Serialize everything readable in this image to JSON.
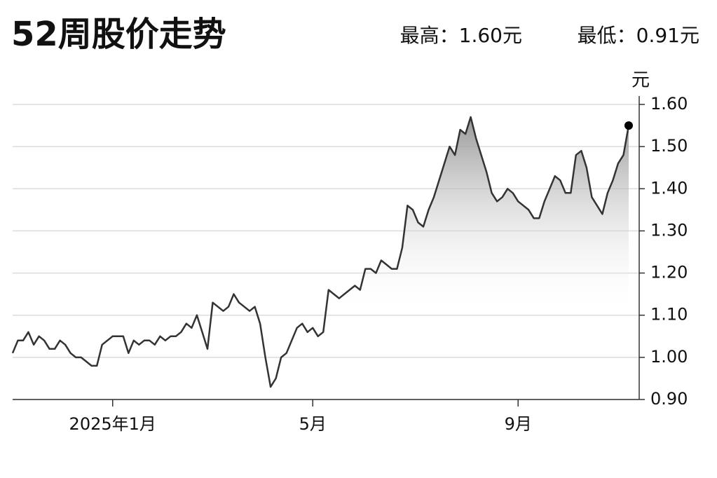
{
  "chart_data": {
    "type": "line",
    "title": "52周股价走势",
    "annotations": [
      "最高：1.60元",
      "最低：0.91元"
    ],
    "y_label": "元",
    "color": "#333333",
    "values": [
      1.01,
      1.04,
      1.04,
      1.06,
      1.03,
      1.05,
      1.04,
      1.02,
      1.02,
      1.04,
      1.03,
      1.01,
      1.0,
      1.0,
      0.99,
      0.98,
      0.98,
      1.03,
      1.04,
      1.05,
      1.05,
      1.05,
      1.01,
      1.04,
      1.03,
      1.04,
      1.04,
      1.03,
      1.05,
      1.04,
      1.05,
      1.05,
      1.06,
      1.08,
      1.07,
      1.1,
      1.06,
      1.02,
      1.13,
      1.12,
      1.11,
      1.12,
      1.15,
      1.13,
      1.12,
      1.11,
      1.12,
      1.08,
      1.0,
      0.93,
      0.95,
      1.0,
      1.01,
      1.04,
      1.07,
      1.08,
      1.06,
      1.07,
      1.05,
      1.06,
      1.16,
      1.15,
      1.14,
      1.15,
      1.16,
      1.17,
      1.16,
      1.21,
      1.21,
      1.2,
      1.23,
      1.22,
      1.21,
      1.21,
      1.26,
      1.36,
      1.35,
      1.32,
      1.31,
      1.35,
      1.38,
      1.42,
      1.46,
      1.5,
      1.48,
      1.54,
      1.53,
      1.57,
      1.52,
      1.48,
      1.44,
      1.39,
      1.37,
      1.38,
      1.4,
      1.39,
      1.37,
      1.36,
      1.35,
      1.33,
      1.33,
      1.37,
      1.4,
      1.43,
      1.42,
      1.39,
      1.39,
      1.48,
      1.49,
      1.45,
      1.38,
      1.36,
      1.34,
      1.39,
      1.42,
      1.46,
      1.48,
      1.55
    ],
    "xlim": [
      0,
      119
    ],
    "xticks": [
      {
        "value": 19,
        "label": "2025年1月"
      },
      {
        "value": 57,
        "label": "5月"
      },
      {
        "value": 96,
        "label": "9月"
      }
    ],
    "ylim": [
      0.9,
      1.6
    ],
    "yticks": [
      {
        "value": 0.9,
        "label": "0.90"
      },
      {
        "value": 1.0,
        "label": "1.00"
      },
      {
        "value": 1.1,
        "label": "1.10"
      },
      {
        "value": 1.2,
        "label": "1.20"
      },
      {
        "value": 1.3,
        "label": "1.30"
      },
      {
        "value": 1.4,
        "label": "1.40"
      },
      {
        "value": 1.5,
        "label": "1.50"
      },
      {
        "value": 1.6,
        "label": "1.60"
      }
    ],
    "grid": true,
    "end_marker": true
  }
}
